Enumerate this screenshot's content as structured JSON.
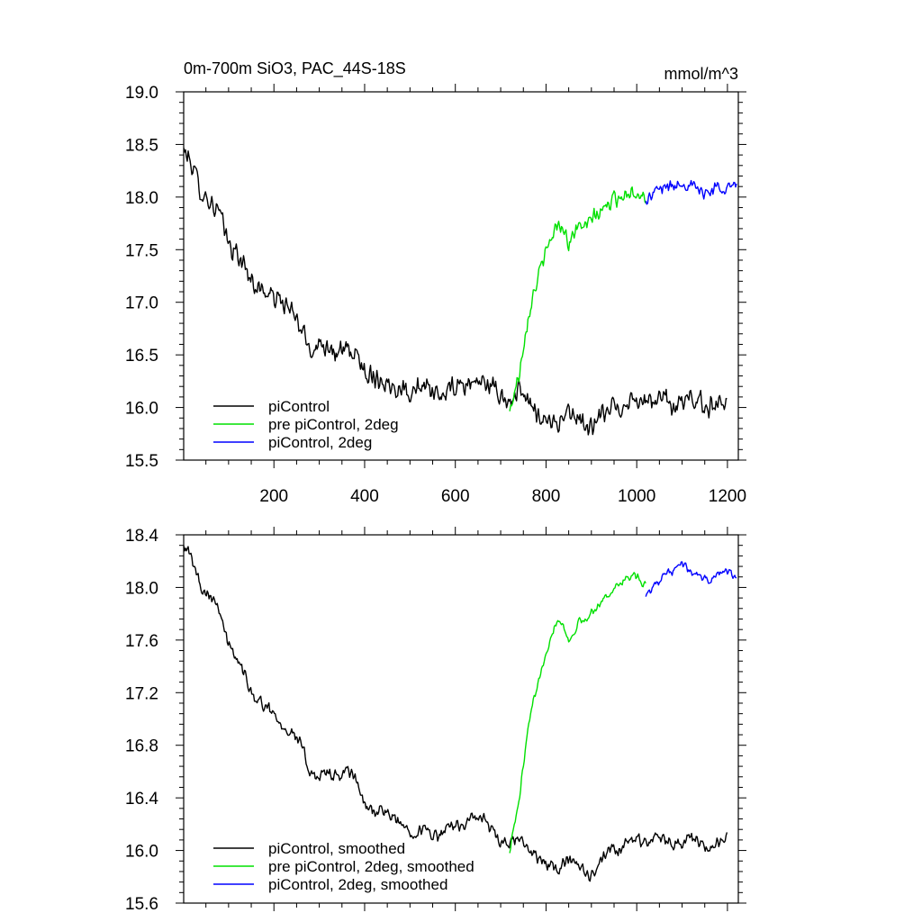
{
  "header": {
    "title": "0m-700m SiO3, PAC_44S-18S",
    "units": "mmol/m^3"
  },
  "chart_data": [
    {
      "type": "line",
      "title": "0m-700m SiO3, PAC_44S-18S",
      "units": "mmol/m^3",
      "xlim": [
        1,
        1224
      ],
      "ylim": [
        15.5,
        19.0
      ],
      "x_ticks": [
        200,
        400,
        600,
        800,
        1000,
        1200
      ],
      "x_tick_labels": [
        "200",
        "400",
        "600",
        "800",
        "1000",
        "1200"
      ],
      "y_ticks": [
        15.5,
        16.0,
        16.5,
        17.0,
        17.5,
        18.0,
        18.5,
        19.0
      ],
      "y_tick_labels": [
        "15.5",
        "16.0",
        "16.5",
        "17.0",
        "17.5",
        "18.0",
        "18.5",
        "19.0"
      ],
      "grid": false,
      "legend_position": "bottom-left",
      "series": [
        {
          "name": "piControl",
          "color": "#000000",
          "x": [
            1,
            20,
            40,
            60,
            80,
            100,
            120,
            140,
            160,
            180,
            200,
            220,
            240,
            260,
            280,
            300,
            320,
            340,
            360,
            380,
            400,
            420,
            440,
            460,
            480,
            500,
            520,
            540,
            560,
            580,
            600,
            620,
            640,
            660,
            680,
            700,
            720,
            740,
            760,
            780,
            800,
            820,
            840,
            860,
            880,
            900,
            920,
            940,
            960,
            980,
            1000,
            1020,
            1040,
            1060,
            1080,
            1100,
            1120,
            1140,
            1160,
            1180,
            1200
          ],
          "y": [
            18.45,
            18.3,
            18.05,
            17.95,
            17.85,
            17.55,
            17.45,
            17.3,
            17.15,
            17.1,
            17.05,
            17.0,
            16.9,
            16.75,
            16.55,
            16.6,
            16.6,
            16.5,
            16.55,
            16.5,
            16.35,
            16.3,
            16.25,
            16.2,
            16.2,
            16.15,
            16.2,
            16.15,
            16.1,
            16.15,
            16.2,
            16.2,
            16.25,
            16.25,
            16.2,
            16.1,
            16.05,
            16.15,
            16.05,
            15.95,
            15.9,
            15.85,
            15.9,
            15.95,
            15.85,
            15.8,
            15.9,
            16.0,
            16.0,
            16.05,
            16.1,
            16.05,
            16.05,
            16.1,
            16.0,
            16.05,
            16.1,
            16.05,
            16.0,
            16.05,
            16.1
          ],
          "noise": 0.12
        },
        {
          "name": "pre piControl, 2deg",
          "color": "#00e000",
          "x": [
            720,
            730,
            740,
            750,
            760,
            770,
            780,
            790,
            800,
            810,
            820,
            830,
            840,
            850,
            860,
            870,
            880,
            890,
            900,
            920,
            940,
            960,
            980,
            1000,
            1020
          ],
          "y": [
            15.95,
            16.15,
            16.3,
            16.6,
            16.85,
            17.05,
            17.2,
            17.35,
            17.45,
            17.6,
            17.7,
            17.75,
            17.7,
            17.55,
            17.65,
            17.7,
            17.75,
            17.7,
            17.8,
            17.85,
            17.95,
            18.0,
            18.05,
            18.05,
            18.0
          ],
          "noise": 0.09
        },
        {
          "name": "piControl, 2deg",
          "color": "#0000ff",
          "x": [
            1020,
            1040,
            1060,
            1080,
            1100,
            1120,
            1140,
            1160,
            1180,
            1200,
            1220
          ],
          "y": [
            17.95,
            18.05,
            18.1,
            18.1,
            18.15,
            18.1,
            18.05,
            18.05,
            18.1,
            18.1,
            18.1
          ],
          "noise": 0.08
        }
      ]
    },
    {
      "type": "line",
      "xlim": [
        1,
        1224
      ],
      "ylim": [
        15.6,
        18.4
      ],
      "y_ticks": [
        15.6,
        16.0,
        16.4,
        16.8,
        17.2,
        17.6,
        18.0,
        18.4
      ],
      "y_tick_labels": [
        "15.6",
        "16.0",
        "16.4",
        "16.8",
        "17.2",
        "17.6",
        "18.0",
        "18.4"
      ],
      "x_ticks": [
        200,
        400,
        600,
        800,
        1000,
        1200
      ],
      "grid": false,
      "legend_position": "bottom-left",
      "series": [
        {
          "name": "piControl, smoothed",
          "color": "#000000",
          "x": [
            1,
            20,
            40,
            60,
            80,
            100,
            120,
            140,
            160,
            180,
            200,
            220,
            240,
            260,
            280,
            300,
            320,
            340,
            360,
            380,
            400,
            420,
            440,
            460,
            480,
            500,
            520,
            540,
            560,
            580,
            600,
            620,
            640,
            660,
            680,
            700,
            720,
            740,
            760,
            780,
            800,
            820,
            840,
            860,
            880,
            900,
            920,
            940,
            960,
            980,
            1000,
            1020,
            1040,
            1060,
            1080,
            1100,
            1120,
            1140,
            1160,
            1180,
            1200
          ],
          "y": [
            18.35,
            18.2,
            18.0,
            17.95,
            17.85,
            17.55,
            17.45,
            17.3,
            17.15,
            17.1,
            17.05,
            16.95,
            16.9,
            16.8,
            16.6,
            16.55,
            16.6,
            16.55,
            16.6,
            16.55,
            16.35,
            16.3,
            16.3,
            16.25,
            16.2,
            16.15,
            16.15,
            16.15,
            16.1,
            16.15,
            16.2,
            16.2,
            16.25,
            16.25,
            16.15,
            16.05,
            16.05,
            16.1,
            16.0,
            15.95,
            15.9,
            15.85,
            15.9,
            15.95,
            15.85,
            15.8,
            15.9,
            16.0,
            16.0,
            16.05,
            16.1,
            16.05,
            16.1,
            16.1,
            16.05,
            16.05,
            16.1,
            16.05,
            16.0,
            16.05,
            16.1
          ],
          "noise": 0.06
        },
        {
          "name": "pre piControl, 2deg, smoothed",
          "color": "#00e000",
          "x": [
            720,
            730,
            740,
            750,
            760,
            770,
            780,
            790,
            800,
            810,
            820,
            830,
            840,
            850,
            860,
            870,
            880,
            890,
            900,
            920,
            940,
            960,
            980,
            1000,
            1020
          ],
          "y": [
            16.0,
            16.2,
            16.35,
            16.65,
            16.9,
            17.1,
            17.25,
            17.4,
            17.5,
            17.62,
            17.72,
            17.76,
            17.7,
            17.58,
            17.66,
            17.72,
            17.76,
            17.74,
            17.82,
            17.88,
            17.96,
            18.02,
            18.08,
            18.08,
            18.0
          ],
          "noise": 0.04
        },
        {
          "name": "piControl, 2deg, smoothed",
          "color": "#0000ff",
          "x": [
            1020,
            1040,
            1060,
            1080,
            1100,
            1120,
            1140,
            1160,
            1180,
            1200,
            1220
          ],
          "y": [
            17.95,
            18.02,
            18.1,
            18.12,
            18.18,
            18.12,
            18.08,
            18.06,
            18.1,
            18.12,
            18.08
          ],
          "noise": 0.04
        }
      ]
    }
  ]
}
